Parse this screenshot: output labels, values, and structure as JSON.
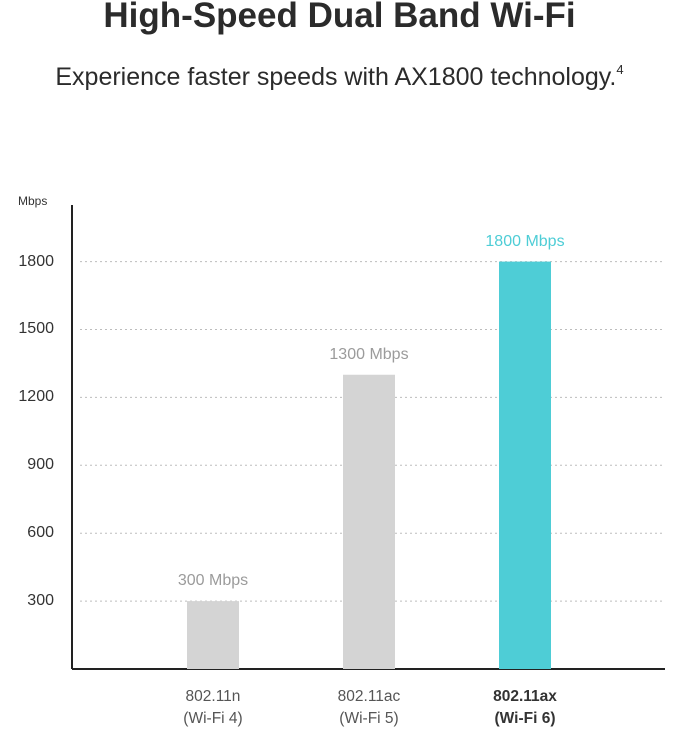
{
  "chart_data": {
    "type": "bar",
    "title": "High-Speed Dual Band Wi-Fi",
    "subtitle": "Experience faster speeds with AX1800 technology.",
    "subtitle_note": "4",
    "y_label": "Mbps",
    "categories": [
      "802.11n\n(Wi-Fi 4)",
      "802.11ac\n(Wi-Fi 5)",
      "802.11ax\n(Wi-Fi 6)"
    ],
    "values": [
      300,
      1300,
      1800
    ],
    "value_labels": [
      "300 Mbps",
      "1300 Mbps",
      "1800 Mbps"
    ],
    "colors": [
      "#d4d4d4",
      "#d4d4d4",
      "#4ecdd6"
    ],
    "highlight_index": 2,
    "ylim": [
      0,
      2050
    ],
    "yticks": [
      300,
      600,
      900,
      1200,
      1500,
      1800
    ],
    "grid": true
  }
}
